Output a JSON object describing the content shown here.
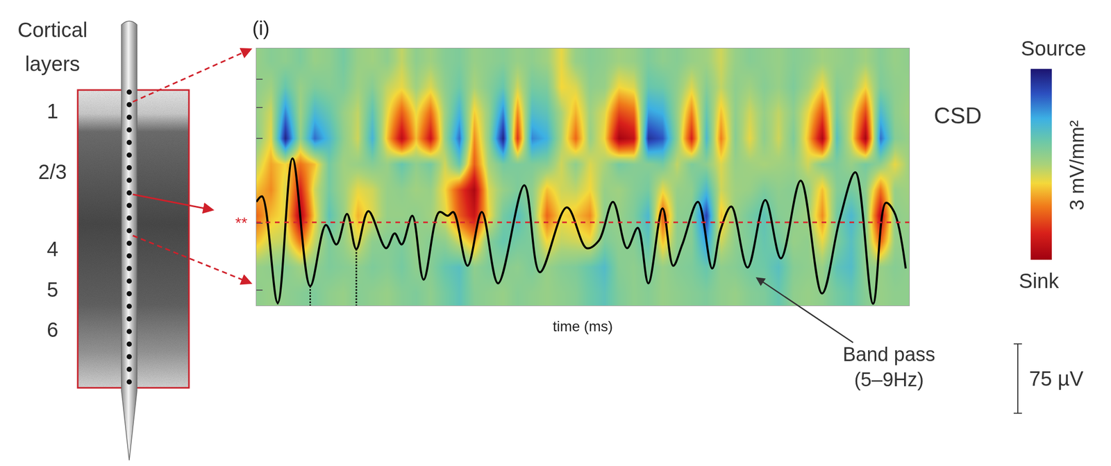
{
  "chart_data": {
    "type": "heatmap",
    "panel_label": "(i)",
    "title": "CSD",
    "x_label": "time (ms)",
    "xlim": [
      0,
      4500
    ],
    "ylim": [
      10.5,
      0.5
    ],
    "yticks": [
      1.7,
      2.8,
      4,
      7.3,
      9.9
    ],
    "tick_labels": false,
    "grid": false,
    "heatmap": {
      "x": [
        0,
        100,
        200,
        300,
        400,
        500,
        600,
        700,
        800,
        900,
        1000,
        1100,
        1200,
        1300,
        1400,
        1500,
        1600,
        1700,
        1800,
        1900,
        2000,
        2100,
        2200,
        2300,
        2400,
        2500,
        2600,
        2700,
        2800,
        2900,
        3000,
        3100,
        3200,
        3300,
        3400,
        3500,
        3600,
        3700,
        3800,
        3900,
        4000,
        4100,
        4200,
        4300,
        4400,
        4500
      ],
      "y": [
        1,
        2,
        3,
        4,
        5,
        6,
        7,
        8,
        9,
        10
      ],
      "z": [
        [
          0.2,
          0.4,
          0.3,
          0.5,
          0.2,
          0.3,
          0.6,
          0.2,
          0.1,
          0.3,
          -0.2,
          0.3,
          0.1,
          0.4,
          0.5,
          0.2,
          0.3,
          0.4,
          0.2,
          0.3,
          0.1,
          -0.5,
          0.2,
          0.4,
          0.3,
          0.1,
          0.2,
          0.5,
          0.3,
          0.4,
          0.2,
          0.1,
          -0.3,
          0.2,
          0.4,
          0.3,
          0.2,
          0.4,
          0.3,
          0.1,
          0.2,
          0.3,
          0.1,
          0.4,
          0.2,
          0.3
        ],
        [
          0.3,
          0.1,
          0.8,
          0.2,
          0.5,
          0.4,
          0.5,
          0.1,
          0.4,
          -0.2,
          -0.5,
          0.1,
          -0.4,
          0.3,
          0.7,
          0.0,
          0.4,
          0.8,
          -0.3,
          0.6,
          0.5,
          -0.6,
          -0.4,
          0.3,
          0.2,
          -0.6,
          -0.4,
          0.8,
          0.7,
          0.3,
          -0.4,
          0.4,
          -0.2,
          0.3,
          0.1,
          0.4,
          0.2,
          0.5,
          0.1,
          -0.6,
          0.4,
          0.2,
          -0.6,
          0.5,
          0.3,
          0.2
        ],
        [
          0.2,
          -0.3,
          1.8,
          0.1,
          1.2,
          0.8,
          0.2,
          -0.2,
          0.9,
          -0.5,
          -1.6,
          -0.5,
          -1.5,
          0.1,
          1.3,
          -0.7,
          0.2,
          1.8,
          -1.2,
          1.1,
          0.9,
          0.0,
          -0.9,
          0.1,
          -0.4,
          -1.8,
          -1.5,
          1.6,
          1.4,
          0.2,
          -1.3,
          0.8,
          -0.8,
          0.3,
          -0.3,
          0.2,
          -0.2,
          0.3,
          -0.5,
          -1.7,
          0.6,
          -0.3,
          -1.8,
          1.2,
          0.3,
          0.1
        ],
        [
          0.3,
          -0.5,
          2.8,
          0.2,
          2.0,
          1.2,
          0.3,
          -0.3,
          1.3,
          -0.8,
          -2.6,
          -0.8,
          -2.4,
          0.2,
          2.0,
          -1.2,
          0.3,
          2.8,
          -2.0,
          1.8,
          1.4,
          0.0,
          -1.5,
          0.2,
          -0.6,
          -2.9,
          -2.5,
          2.6,
          2.2,
          0.3,
          -2.2,
          1.2,
          -1.3,
          0.4,
          -0.5,
          0.3,
          -0.3,
          0.5,
          -0.8,
          -2.8,
          1.0,
          -0.4,
          -2.9,
          2.0,
          0.4,
          0.2
        ],
        [
          -0.2,
          -1.0,
          -0.6,
          -1.4,
          -0.8,
          0.6,
          0.1,
          0.2,
          0.4,
          0.2,
          0.8,
          0.3,
          0.6,
          -0.3,
          0.8,
          -1.6,
          0.0,
          0.6,
          0.5,
          0.5,
          0.4,
          -0.3,
          0.3,
          -0.4,
          0.0,
          0.6,
          0.4,
          0.4,
          0.6,
          -0.2,
          0.5,
          0.3,
          -0.4,
          0.2,
          0.1,
          0.0,
          0.1,
          0.2,
          -0.3,
          0.4,
          0.5,
          0.2,
          0.6,
          0.3,
          -0.5,
          0.1
        ],
        [
          -0.8,
          -1.2,
          -0.4,
          -2.2,
          -0.3,
          0.6,
          0.1,
          -0.5,
          -0.3,
          0.2,
          0.3,
          0.1,
          0.2,
          -0.6,
          -1.8,
          -2.8,
          -0.4,
          0.2,
          0.5,
          0.3,
          -0.8,
          -0.3,
          -0.2,
          -0.6,
          0.2,
          0.1,
          0.4,
          0.6,
          -0.5,
          0.2,
          0.3,
          1.2,
          -0.3,
          0.1,
          0.2,
          0.5,
          0.3,
          0.4,
          0.2,
          -0.8,
          0.4,
          0.6,
          0.3,
          -1.4,
          0.2,
          0.1
        ],
        [
          -1.5,
          -0.8,
          -0.5,
          -2.8,
          -0.6,
          0.9,
          0.2,
          -0.9,
          -0.4,
          0.2,
          0.2,
          0.3,
          0.1,
          -0.4,
          -1.6,
          -2.4,
          -0.6,
          0.6,
          1.0,
          0.4,
          -1.5,
          -0.6,
          -0.8,
          -1.2,
          0.3,
          0.2,
          0.5,
          1.2,
          -1.6,
          0.3,
          0.4,
          2.4,
          -0.8,
          0.2,
          0.6,
          0.9,
          0.4,
          0.3,
          0.1,
          -1.2,
          0.6,
          1.2,
          0.4,
          -2.6,
          0.3,
          0.2
        ],
        [
          -0.8,
          -0.3,
          -0.2,
          -1.4,
          -0.2,
          0.5,
          0.2,
          -0.4,
          0.3,
          0.4,
          0.5,
          0.2,
          0.4,
          0.3,
          -0.3,
          -1.0,
          0.4,
          0.8,
          0.6,
          0.5,
          -0.6,
          -0.2,
          -0.3,
          -0.5,
          0.5,
          0.3,
          0.4,
          0.9,
          -0.8,
          0.3,
          0.4,
          1.6,
          -0.3,
          0.3,
          0.5,
          0.8,
          0.6,
          0.2,
          0.3,
          -0.5,
          0.5,
          1.0,
          0.3,
          -1.5,
          0.2,
          0.3
        ],
        [
          0.2,
          0.3,
          0.4,
          0.1,
          0.3,
          0.5,
          0.4,
          0.3,
          0.5,
          0.4,
          0.6,
          0.3,
          0.4,
          0.8,
          1.0,
          0.3,
          0.5,
          0.4,
          0.3,
          0.5,
          0.2,
          0.4,
          0.5,
          0.8,
          1.1,
          0.4,
          0.3,
          0.5,
          0.2,
          0.4,
          0.5,
          0.8,
          0.3,
          0.4,
          0.6,
          0.7,
          1.0,
          0.4,
          0.3,
          0.2,
          0.9,
          1.1,
          0.3,
          0.2,
          0.4,
          0.3
        ],
        [
          0.3,
          0.2,
          0.3,
          0.4,
          0.5,
          0.3,
          0.2,
          0.4,
          0.3,
          0.2,
          0.4,
          0.5,
          0.3,
          0.6,
          0.9,
          0.4,
          0.3,
          0.2,
          0.4,
          0.3,
          0.2,
          0.3,
          0.4,
          0.7,
          0.9,
          0.5,
          0.3,
          0.4,
          0.2,
          0.3,
          0.4,
          0.5,
          0.3,
          0.2,
          0.4,
          0.5,
          0.8,
          0.3,
          0.2,
          0.3,
          0.6,
          0.8,
          0.4,
          0.2,
          0.3,
          0.3
        ]
      ],
      "zlim": [
        -3,
        3
      ],
      "colorbar_label": "3 mV/mm²",
      "colorbar_top": "Source",
      "colorbar_bottom": "Sink"
    },
    "series": [
      {
        "name": "Band pass (5–9Hz)",
        "type": "line",
        "axis": "y2",
        "color": "#000000",
        "line_style": "solid",
        "x": [
          0,
          39,
          147,
          249,
          371,
          479,
          552,
          625,
          689,
          772,
          894,
          953,
          1002,
          1075,
          1153,
          1261,
          1319,
          1358,
          1456,
          1554,
          1666,
          1847,
          1954,
          2140,
          2277,
          2360,
          2458,
          2555,
          2629,
          2702,
          2800,
          2873,
          2936,
          3044,
          3142,
          3200,
          3274,
          3386,
          3508,
          3616,
          3752,
          3899,
          4021,
          4129,
          4251,
          4339,
          4397,
          4476
        ],
        "values": [
          22,
          28,
          -87,
          69,
          -69,
          -3,
          -24,
          9,
          -29,
          12,
          -28,
          -12,
          -24,
          7,
          -62,
          11,
          7,
          11,
          -47,
          11,
          -66,
          40,
          -54,
          16,
          -28,
          -20,
          22,
          -28,
          -6,
          -66,
          15,
          -47,
          -24,
          22,
          -50,
          -8,
          17,
          -49,
          24,
          -39,
          45,
          -77,
          3,
          54,
          -88,
          21,
          11,
          -50
        ]
      }
    ],
    "y2lim": [
      -90,
      188
    ],
    "reference_line": {
      "label": "**",
      "value": 0,
      "color": "#d8262e",
      "line_style": "dashed"
    },
    "trough_times": [
      147,
      371,
      689
    ],
    "scale_bar": {
      "value": 75,
      "label": "75 µV"
    }
  },
  "probe_diagram": {
    "title": "Cortical layers",
    "layers": [
      "1",
      "2/3",
      "4",
      "5",
      "6"
    ]
  }
}
